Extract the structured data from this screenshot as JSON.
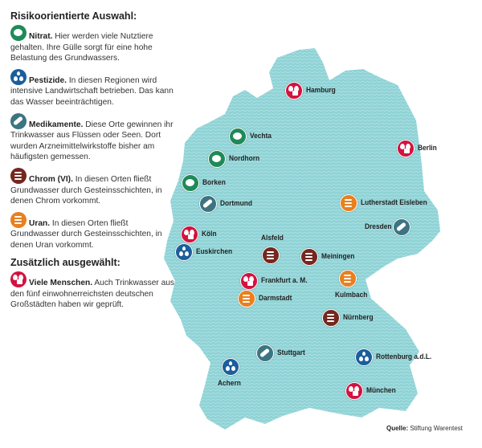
{
  "colors": {
    "map": "#8fd3d6",
    "nitrat": "#1f8a58",
    "pestizide": "#1b5e9c",
    "medikamente": "#3c7484",
    "chrom": "#74281f",
    "uran": "#e8801f",
    "menschen": "#d3133f"
  },
  "legend": {
    "heading1": "Risikoorientierte Auswahl:",
    "items": [
      {
        "type": "nitrat",
        "title": "Nitrat.",
        "text": " Hier werden viele Nutztiere gehalten. Ihre Gülle sorgt für eine hohe Belastung des Grundwassers."
      },
      {
        "type": "pestizide",
        "title": "Pestizide.",
        "text": " In diesen Regionen wird intensive Landwirtschaft betrieben. Das kann das Wasser beeinträchtigen."
      },
      {
        "type": "medikamente",
        "title": "Medikamente.",
        "text": " Diese Orte gewinnen ihr Trinkwasser aus Flüssen oder Seen. Dort wurden Arzneimittelwirkstoffe bisher am häufigsten gemessen."
      },
      {
        "type": "chrom",
        "title": "Chrom (VI).",
        "text": " In diesen Orten fließt Grundwasser durch Gesteinsschichten, in denen Chrom vorkommt."
      },
      {
        "type": "uran",
        "title": "Uran.",
        "text": " In diesen Orten fließt Grundwasser durch Gesteinsschichten, in denen Uran vorkommt."
      }
    ],
    "heading2": "Zusätzlich ausgewählt:",
    "extra": {
      "type": "menschen",
      "title": "Viele Menschen.",
      "text": " Auch Trinkwasser aus den fünf einwohnerreichsten deutschen Großstädten haben wir geprüft."
    }
  },
  "markers": [
    {
      "label": "Hamburg",
      "type": "menschen"
    },
    {
      "label": "Vechta",
      "type": "nitrat"
    },
    {
      "label": "Berlin",
      "type": "menschen"
    },
    {
      "label": "Nordhorn",
      "type": "nitrat"
    },
    {
      "label": "Borken",
      "type": "nitrat"
    },
    {
      "label": "Dortmund",
      "type": "medikamente"
    },
    {
      "label": "Lutherstadt Eisleben",
      "type": "uran"
    },
    {
      "label": "Dresden",
      "type": "medikamente"
    },
    {
      "label": "Köln",
      "type": "menschen"
    },
    {
      "label": "Euskirchen",
      "type": "pestizide"
    },
    {
      "label": "Alsfeld",
      "type": "chrom"
    },
    {
      "label": "Meiningen",
      "type": "chrom"
    },
    {
      "label": "Frankfurt a. M.",
      "type": "menschen"
    },
    {
      "label": "Darmstadt",
      "type": "uran"
    },
    {
      "label": "Kulmbach",
      "type": "uran"
    },
    {
      "label": "Nürnberg",
      "type": "chrom"
    },
    {
      "label": "Stuttgart",
      "type": "medikamente"
    },
    {
      "label": "Rottenburg a.d.L.",
      "type": "pestizide"
    },
    {
      "label": "Achern",
      "type": "pestizide"
    },
    {
      "label": "München",
      "type": "menschen"
    }
  ],
  "source": {
    "label": "Quelle:",
    "text": " Stiftung Warentest"
  }
}
